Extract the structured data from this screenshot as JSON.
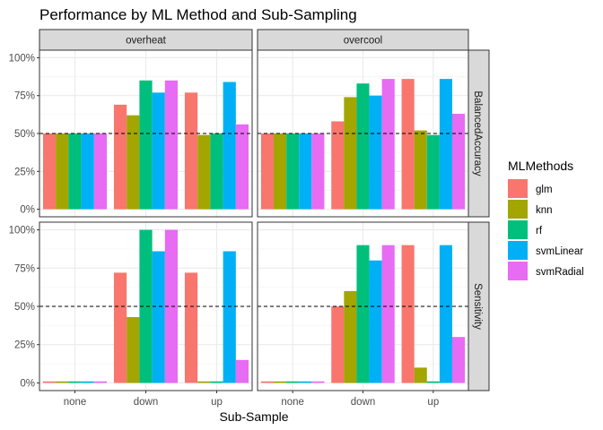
{
  "chart_data": {
    "type": "bar",
    "title": "Performance by ML Method and Sub-Sampling",
    "xlabel": "Sub-Sample",
    "ylabel": "",
    "categories": [
      "none",
      "down",
      "up"
    ],
    "ylim": [
      0,
      1
    ],
    "y_ticks": [
      "0%",
      "25%",
      "50%",
      "75%",
      "100%"
    ],
    "reference_line": 0.5,
    "legend": {
      "title": "MLMethods",
      "placement": "right",
      "entries": [
        "glm",
        "knn",
        "rf",
        "svmLinear",
        "svmRadial"
      ]
    },
    "colors": {
      "glm": "#F8766D",
      "knn": "#A3A500",
      "rf": "#00BF7D",
      "svmLinear": "#00B0F6",
      "svmRadial": "#E76BF3"
    },
    "columns": [
      "overheat",
      "overcool"
    ],
    "rows": [
      "BalancedAccuracy",
      "Sensitivity"
    ],
    "panels": [
      {
        "row": "BalancedAccuracy",
        "column": "overheat",
        "series": [
          {
            "name": "glm",
            "values": [
              0.5,
              0.69,
              0.77
            ]
          },
          {
            "name": "knn",
            "values": [
              0.5,
              0.62,
              0.49
            ]
          },
          {
            "name": "rf",
            "values": [
              0.5,
              0.85,
              0.5
            ]
          },
          {
            "name": "svmLinear",
            "values": [
              0.5,
              0.77,
              0.84
            ]
          },
          {
            "name": "svmRadial",
            "values": [
              0.5,
              0.85,
              0.56
            ]
          }
        ]
      },
      {
        "row": "BalancedAccuracy",
        "column": "overcool",
        "series": [
          {
            "name": "glm",
            "values": [
              0.5,
              0.58,
              0.86
            ]
          },
          {
            "name": "knn",
            "values": [
              0.5,
              0.74,
              0.52
            ]
          },
          {
            "name": "rf",
            "values": [
              0.5,
              0.83,
              0.49
            ]
          },
          {
            "name": "svmLinear",
            "values": [
              0.5,
              0.75,
              0.86
            ]
          },
          {
            "name": "svmRadial",
            "values": [
              0.5,
              0.86,
              0.63
            ]
          }
        ]
      },
      {
        "row": "Sensitivity",
        "column": "overheat",
        "series": [
          {
            "name": "glm",
            "values": [
              0.01,
              0.72,
              0.72
            ]
          },
          {
            "name": "knn",
            "values": [
              0.01,
              0.43,
              0.01
            ]
          },
          {
            "name": "rf",
            "values": [
              0.01,
              1.0,
              0.01
            ]
          },
          {
            "name": "svmLinear",
            "values": [
              0.01,
              0.86,
              0.86
            ]
          },
          {
            "name": "svmRadial",
            "values": [
              0.01,
              1.0,
              0.15
            ]
          }
        ]
      },
      {
        "row": "Sensitivity",
        "column": "overcool",
        "series": [
          {
            "name": "glm",
            "values": [
              0.01,
              0.5,
              0.9
            ]
          },
          {
            "name": "knn",
            "values": [
              0.01,
              0.6,
              0.1
            ]
          },
          {
            "name": "rf",
            "values": [
              0.01,
              0.9,
              0.01
            ]
          },
          {
            "name": "svmLinear",
            "values": [
              0.01,
              0.8,
              0.9
            ]
          },
          {
            "name": "svmRadial",
            "values": [
              0.01,
              0.9,
              0.3
            ]
          }
        ]
      }
    ]
  }
}
